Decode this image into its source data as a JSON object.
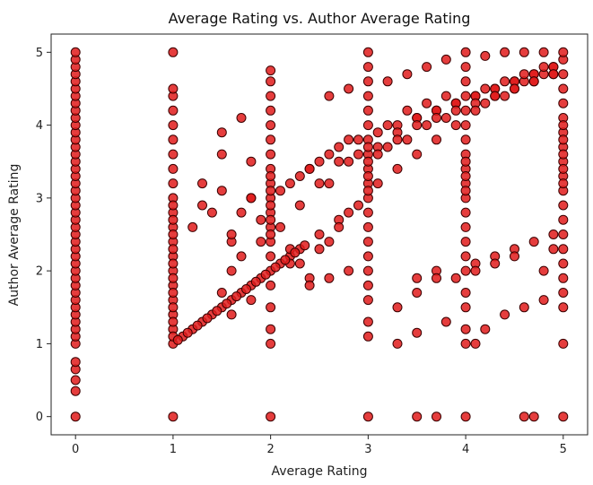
{
  "chart_data": {
    "type": "scatter",
    "title": "Average Rating vs. Author Average Rating",
    "xlabel": "Average Rating",
    "ylabel": "Author Average Rating",
    "xlim": [
      -0.25,
      5.25
    ],
    "ylim": [
      -0.25,
      5.25
    ],
    "xticks": [
      "0",
      "1",
      "2",
      "3",
      "4",
      "5"
    ],
    "yticks": [
      "0",
      "1",
      "2",
      "3",
      "4",
      "5"
    ],
    "grid": false,
    "legend": "none",
    "marker_color": "#e11b1b",
    "marker_edge_color": "#3a0000",
    "series": [
      {
        "x": [
          0,
          0,
          0,
          0,
          0,
          0,
          0,
          0,
          0,
          0,
          0,
          0,
          0,
          0,
          0,
          0,
          0,
          0,
          0,
          0,
          0,
          0,
          0,
          0,
          0,
          0,
          0,
          0,
          0,
          0,
          0,
          0,
          0,
          0,
          0,
          0,
          0,
          0,
          0,
          0,
          0,
          0,
          0,
          0,
          0,
          0,
          1,
          1,
          1,
          1,
          1,
          1,
          1,
          1,
          1,
          1,
          1,
          1,
          1,
          1,
          1,
          1,
          1,
          1,
          1,
          1,
          1,
          1,
          1,
          1,
          1,
          1,
          1,
          1,
          1,
          1,
          1,
          2,
          2,
          2,
          2,
          2,
          2,
          2,
          2,
          2,
          2,
          2,
          2,
          2,
          2,
          2,
          2,
          2,
          2,
          2,
          2,
          2,
          2,
          2,
          2,
          2,
          3,
          3,
          3,
          3,
          3,
          3,
          3,
          3,
          3,
          3,
          3,
          3,
          3,
          3,
          3,
          3,
          3,
          3,
          3,
          3,
          3,
          3,
          3,
          3,
          3,
          4,
          4,
          4,
          4,
          4,
          4,
          4,
          4,
          4,
          4,
          4,
          4,
          4,
          4,
          4,
          4,
          4,
          4,
          4,
          4,
          4,
          4,
          4,
          4,
          5,
          5,
          5,
          5,
          5,
          5,
          5,
          5,
          5,
          5,
          5,
          5,
          5,
          5,
          5,
          5,
          5,
          5,
          5,
          5,
          5,
          5,
          5,
          5,
          5,
          5,
          1.1,
          1.2,
          1.3,
          1.4,
          1.5,
          1.6,
          1.7,
          1.8,
          1.9,
          2.1,
          2.2,
          2.3,
          2.5,
          2.7,
          1.2,
          1.3,
          1.5,
          1.6,
          1.7,
          1.8,
          2.2,
          2.4,
          2.6,
          2.8,
          3.2,
          3.4,
          3.6,
          3.8,
          4.2,
          4.4,
          4.6,
          4.8,
          1.3,
          1.5,
          1.7,
          1.9,
          2.1,
          2.3,
          2.5,
          2.7,
          2.9,
          3.1,
          3.3,
          3.5,
          3.7,
          3.9,
          4.1,
          4.3,
          4.5,
          4.7,
          4.9,
          1.4,
          1.6,
          1.8,
          2.1,
          2.3,
          2.5,
          2.7,
          2.9,
          3.1,
          3.3,
          3.5,
          3.7,
          3.9,
          4.1,
          4.3,
          4.5,
          4.7,
          4.9,
          1.5,
          1.7,
          1.9,
          2.2,
          2.4,
          2.6,
          2.8,
          3.2,
          3.4,
          3.6,
          3.8,
          4.2,
          4.4,
          4.6,
          4.8,
          1.6,
          1.8,
          2.2,
          2.4,
          2.6,
          2.8,
          3.1,
          3.3,
          3.5,
          3.7,
          3.9,
          4.1,
          4.3,
          4.5,
          4.7,
          4.9,
          2.3,
          2.5,
          2.7,
          2.9,
          3.1,
          3.3,
          3.5,
          3.7,
          3.9,
          4.1,
          4.3,
          4.5,
          4.7,
          4.9,
          2.6,
          2.8,
          3.2,
          3.4,
          3.6,
          3.8,
          4.2,
          4.4,
          4.6,
          4.8,
          3.5,
          3.7,
          4.1,
          4.3,
          4.5,
          4.7,
          4.9,
          1.5,
          1.6,
          1.8,
          2.4,
          2.6,
          2.8,
          3.3,
          3.5,
          3.7,
          3.9,
          4.1,
          4.3,
          4.5,
          4.8,
          3.3,
          3.5,
          3.8,
          4.1,
          4.2,
          4.4,
          4.6,
          4.8,
          4.9,
          3.5,
          3.7,
          4.6,
          4.7,
          1.05,
          1.15,
          1.25,
          1.35,
          1.45,
          1.55,
          1.65,
          1.75,
          1.85,
          1.95,
          2.05,
          2.15,
          2.25,
          2.35
        ],
        "y": [
          0,
          0.35,
          0.5,
          0.65,
          0.75,
          1,
          1.1,
          1.2,
          1.3,
          1.4,
          1.5,
          1.6,
          1.7,
          1.8,
          1.9,
          2,
          2.1,
          2.2,
          2.3,
          2.4,
          2.5,
          2.6,
          2.7,
          2.8,
          2.9,
          3,
          3.1,
          3.2,
          3.3,
          3.4,
          3.5,
          3.6,
          3.7,
          3.8,
          3.9,
          4,
          4.1,
          4.2,
          4.3,
          4.4,
          4.5,
          4.6,
          4.7,
          4.8,
          4.9,
          5,
          0,
          1,
          1.2,
          1.4,
          1.6,
          1.8,
          2,
          2.2,
          2.4,
          2.6,
          2.8,
          3,
          3.2,
          3.4,
          3.6,
          3.8,
          4,
          4.2,
          4.4,
          4.5,
          5,
          1.1,
          1.3,
          1.5,
          1.7,
          1.9,
          2.1,
          2.3,
          2.5,
          2.7,
          2.9,
          0,
          1,
          1.2,
          1.5,
          1.8,
          2,
          2.2,
          2.4,
          2.6,
          2.8,
          3,
          3.2,
          3.4,
          3.6,
          3.8,
          4,
          4.2,
          4.4,
          4.6,
          4.75,
          3.1,
          3.3,
          2.5,
          2.7,
          2.9,
          0,
          1.1,
          1.3,
          1.6,
          1.8,
          2,
          2.2,
          2.4,
          2.6,
          2.8,
          3,
          3.2,
          3.4,
          3.6,
          3.8,
          4,
          4.2,
          4.4,
          4.6,
          4.8,
          5,
          3.1,
          3.3,
          3.5,
          3.7,
          0,
          1,
          1.2,
          1.5,
          1.7,
          2,
          2.2,
          2.4,
          2.6,
          2.8,
          3,
          3.2,
          3.4,
          3.6,
          3.8,
          4,
          4.2,
          4.4,
          4.6,
          4.8,
          5,
          3.1,
          3.3,
          3.5,
          0,
          1,
          1.5,
          1.7,
          1.9,
          2.1,
          2.3,
          2.5,
          2.7,
          2.9,
          3.1,
          3.3,
          3.5,
          3.7,
          3.9,
          4.1,
          4.3,
          4.5,
          4.7,
          4.9,
          5,
          3.2,
          3.4,
          3.6,
          3.8,
          4,
          1.1,
          1.2,
          1.3,
          1.4,
          1.5,
          1.6,
          1.7,
          1.8,
          1.9,
          2.1,
          2.2,
          2.3,
          2.5,
          2.7,
          2.6,
          2.9,
          3.1,
          2.4,
          2.8,
          3,
          3.2,
          3.4,
          3.2,
          3.5,
          3.7,
          3.8,
          4,
          4.1,
          4.3,
          4.4,
          4.6,
          4.7,
          3.2,
          3.6,
          2.2,
          2.7,
          3.1,
          3.3,
          3.5,
          3.7,
          3.8,
          3.9,
          4,
          4.1,
          4.2,
          4.3,
          4.4,
          4.5,
          4.6,
          4.7,
          4.8,
          2.8,
          2.5,
          3.5,
          2.6,
          2.9,
          3.2,
          3.5,
          3.6,
          3.7,
          3.9,
          4.1,
          4.2,
          4.3,
          4.4,
          4.5,
          4.6,
          4.7,
          4.8,
          3.9,
          4.1,
          2.4,
          2.3,
          3.4,
          3.6,
          3.8,
          4,
          4.2,
          4.3,
          4.4,
          4.5,
          4.6,
          4.7,
          4.8,
          2,
          3,
          2.1,
          1.9,
          2.4,
          2.8,
          3.6,
          3.8,
          4,
          4.1,
          4.2,
          4.3,
          4.4,
          4.5,
          4.6,
          4.7,
          2.1,
          2.3,
          2.6,
          2.9,
          3.2,
          3.4,
          3.6,
          3.8,
          4,
          4.2,
          4.4,
          4.5,
          4.6,
          4.7,
          4.4,
          4.5,
          4.6,
          4.7,
          4.8,
          4.9,
          4.95,
          5,
          5,
          5,
          1.9,
          2.0,
          2.1,
          2.2,
          2.3,
          2.4,
          2.5,
          1.7,
          1.4,
          1.6,
          1.8,
          1.9,
          2.0,
          1.5,
          1.7,
          1.9,
          1.9,
          2.0,
          2.1,
          2.2,
          2.0,
          1.0,
          1.15,
          1.3,
          1.0,
          1.2,
          1.4,
          1.5,
          1.6,
          2.3,
          0,
          0,
          0,
          0,
          1.05,
          1.15,
          1.25,
          1.35,
          1.45,
          1.55,
          1.65,
          1.75,
          1.85,
          1.95,
          2.05,
          2.15,
          2.25,
          2.35
        ]
      }
    ]
  }
}
